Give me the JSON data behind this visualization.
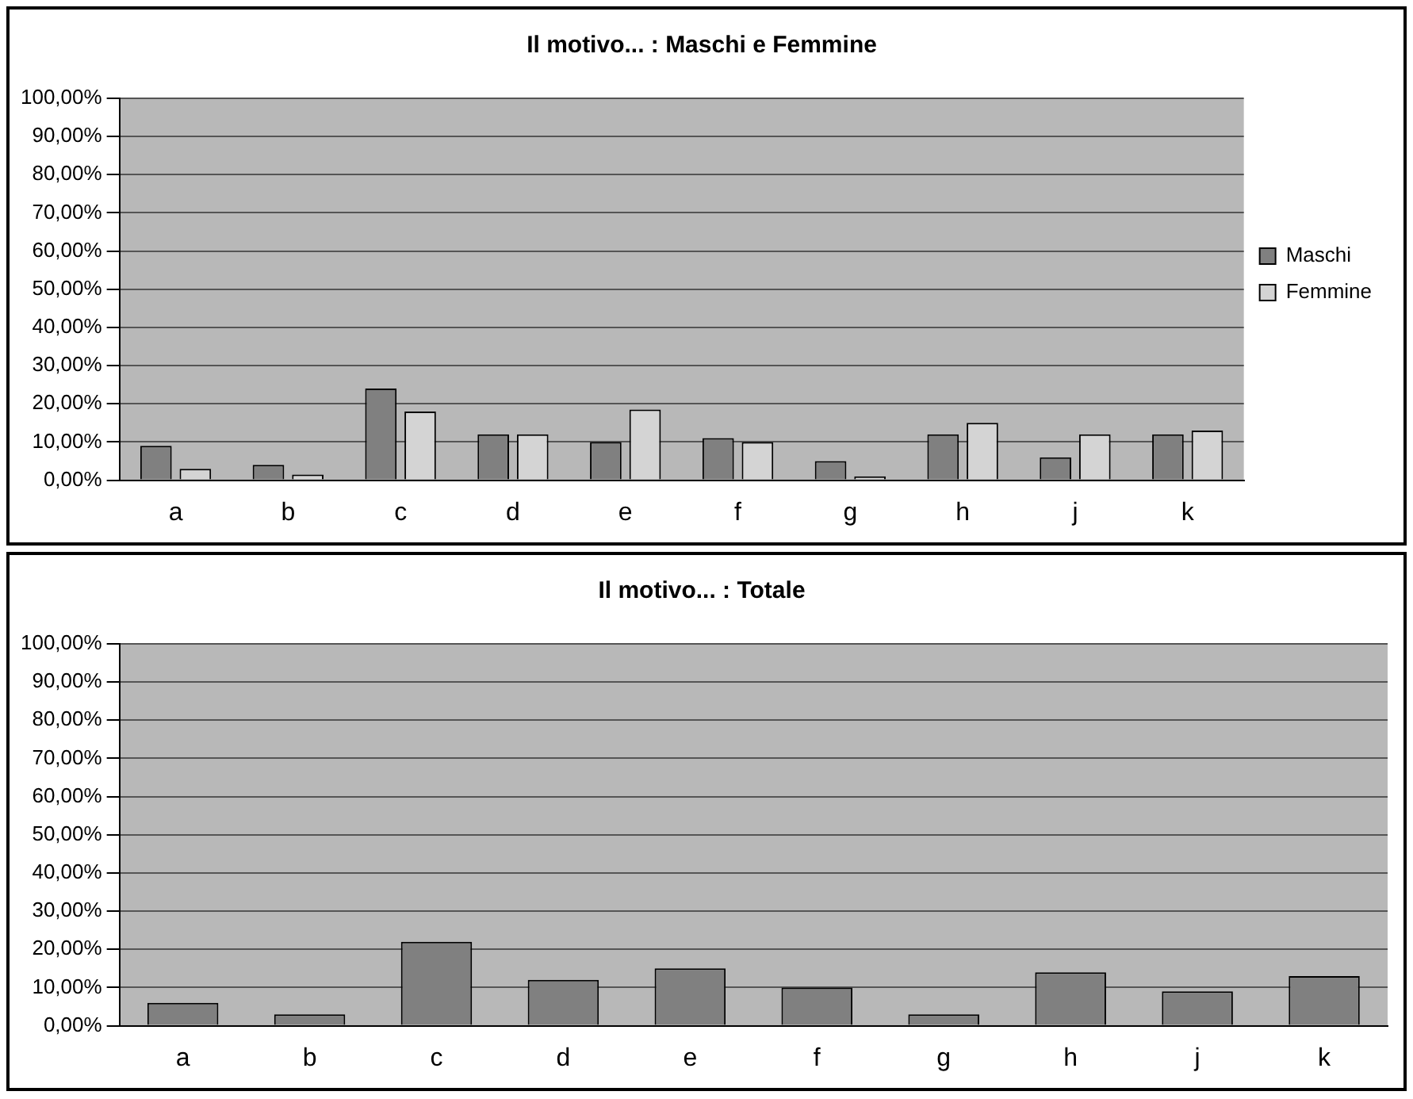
{
  "chart_data": [
    {
      "type": "bar",
      "title": "Il motivo... : Maschi e Femmine",
      "categories": [
        "a",
        "b",
        "c",
        "d",
        "e",
        "f",
        "g",
        "h",
        "j",
        "k"
      ],
      "series": [
        {
          "name": "Maschi",
          "color": "#808080",
          "values": [
            9,
            4,
            24,
            12,
            10,
            11,
            5,
            12,
            6,
            12
          ]
        },
        {
          "name": "Femmine",
          "color": "#d4d4d4",
          "values": [
            3,
            1.5,
            18,
            12,
            18.5,
            10,
            1,
            15,
            12,
            13
          ]
        }
      ],
      "ylim": [
        0,
        100
      ],
      "yticks": [
        {
          "value": 0,
          "label": "0,00%"
        },
        {
          "value": 10,
          "label": "10,00%"
        },
        {
          "value": 20,
          "label": "20,00%"
        },
        {
          "value": 30,
          "label": "30,00%"
        },
        {
          "value": 40,
          "label": "40,00%"
        },
        {
          "value": 50,
          "label": "50,00%"
        },
        {
          "value": 60,
          "label": "60,00%"
        },
        {
          "value": 70,
          "label": "70,00%"
        },
        {
          "value": 80,
          "label": "80,00%"
        },
        {
          "value": 90,
          "label": "90,00%"
        },
        {
          "value": 100,
          "label": "100,00%"
        }
      ],
      "grid": "y",
      "legend": "right"
    },
    {
      "type": "bar",
      "title": "Il motivo... : Totale",
      "categories": [
        "a",
        "b",
        "c",
        "d",
        "e",
        "f",
        "g",
        "h",
        "j",
        "k"
      ],
      "series": [
        {
          "color": "#808080",
          "values": [
            6,
            3,
            22,
            12,
            15,
            10,
            3,
            14,
            9,
            13
          ]
        }
      ],
      "ylim": [
        0,
        100
      ],
      "yticks": [
        {
          "value": 0,
          "label": "0,00%"
        },
        {
          "value": 10,
          "label": "10,00%"
        },
        {
          "value": 20,
          "label": "20,00%"
        },
        {
          "value": 30,
          "label": "30,00%"
        },
        {
          "value": 40,
          "label": "40,00%"
        },
        {
          "value": 50,
          "label": "50,00%"
        },
        {
          "value": 60,
          "label": "60,00%"
        },
        {
          "value": 70,
          "label": "70,00%"
        },
        {
          "value": 80,
          "label": "80,00%"
        },
        {
          "value": 90,
          "label": "90,00%"
        },
        {
          "value": 100,
          "label": "100,00%"
        }
      ],
      "grid": "y"
    }
  ]
}
